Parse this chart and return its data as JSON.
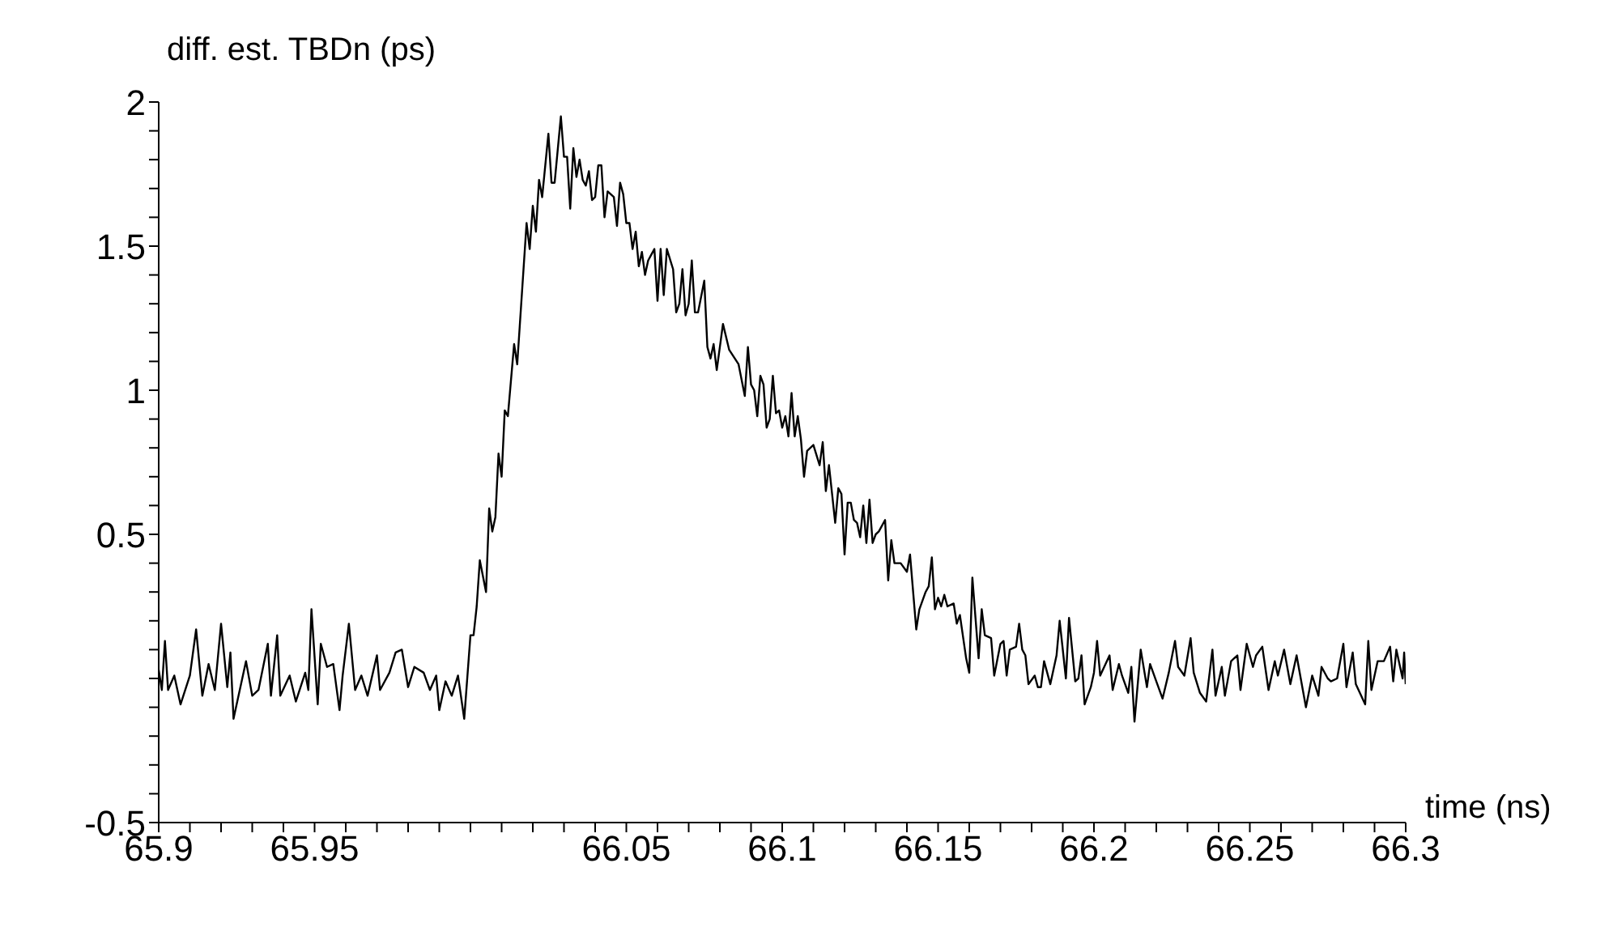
{
  "chart_data": {
    "type": "line",
    "xlabel": "time (ns)",
    "ylabel": "diff. est. TBDn (ps)",
    "xlim": [
      65.9,
      66.3
    ],
    "ylim": [
      -0.5,
      2
    ],
    "xticks": [
      65.9,
      {
        "value": 65.91,
        "label": null
      },
      {
        "value": 65.92,
        "label": null
      },
      {
        "value": 65.93,
        "label": null
      },
      {
        "value": 65.94,
        "label": null
      },
      65.95,
      {
        "value": 65.96,
        "label": null
      },
      {
        "value": 65.97,
        "label": null
      },
      {
        "value": 65.98,
        "label": null
      },
      {
        "value": 65.99,
        "label": null
      },
      {
        "value": 66,
        "label": null
      },
      {
        "value": 66.01,
        "label": null
      },
      {
        "value": 66.02,
        "label": null
      },
      {
        "value": 66.03,
        "label": null
      },
      {
        "value": 66.04,
        "label": null
      },
      66.05,
      {
        "value": 66.06,
        "label": null
      },
      {
        "value": 66.07,
        "label": null
      },
      {
        "value": 66.08,
        "label": null
      },
      {
        "value": 66.09,
        "label": null
      },
      66.1,
      {
        "value": 66.11,
        "label": null
      },
      {
        "value": 66.12,
        "label": null
      },
      {
        "value": 66.13,
        "label": null
      },
      {
        "value": 66.14,
        "label": null
      },
      66.15,
      {
        "value": 66.16,
        "label": null
      },
      {
        "value": 66.17,
        "label": null
      },
      {
        "value": 66.18,
        "label": null
      },
      {
        "value": 66.19,
        "label": null
      },
      66.2,
      {
        "value": 66.21,
        "label": null
      },
      {
        "value": 66.22,
        "label": null
      },
      {
        "value": 66.23,
        "label": null
      },
      {
        "value": 66.24,
        "label": null
      },
      66.25,
      {
        "value": 66.26,
        "label": null
      },
      {
        "value": 66.27,
        "label": null
      },
      {
        "value": 66.28,
        "label": null
      },
      {
        "value": 66.29,
        "label": null
      },
      66.3
    ],
    "yticks": [
      -0.5,
      {
        "value": -0.4,
        "label": null
      },
      {
        "value": -0.3,
        "label": null
      },
      {
        "value": -0.2,
        "label": null
      },
      {
        "value": -0.1,
        "label": null
      },
      {
        "value": 0,
        "label": null
      },
      {
        "value": 0.1,
        "label": null
      },
      {
        "value": 0.2,
        "label": null
      },
      {
        "value": 0.3,
        "label": null
      },
      {
        "value": 0.4,
        "label": null
      },
      0.5,
      {
        "value": 0.6,
        "label": null
      },
      {
        "value": 0.7,
        "label": null
      },
      {
        "value": 0.8,
        "label": null
      },
      {
        "value": 0.9,
        "label": null
      },
      1,
      {
        "value": 1.1,
        "label": null
      },
      {
        "value": 1.2,
        "label": null
      },
      {
        "value": 1.3,
        "label": null
      },
      {
        "value": 1.4,
        "label": null
      },
      1.5,
      {
        "value": 1.6,
        "label": null
      },
      {
        "value": 1.7,
        "label": null
      },
      {
        "value": 1.8,
        "label": null
      },
      {
        "value": 1.9,
        "label": null
      },
      2
    ],
    "grid": false,
    "marker": "none",
    "line_style": "solid",
    "series": [
      {
        "color": "#000000",
        "x": [
          65.9,
          65.901,
          65.902,
          65.903,
          65.905,
          65.907,
          65.91,
          65.912,
          65.914,
          65.916,
          65.918,
          65.92,
          65.922,
          65.923,
          65.924,
          65.928,
          65.93,
          65.932,
          65.935,
          65.936,
          65.938,
          65.939,
          65.942,
          65.944,
          65.947,
          65.948,
          65.949,
          65.951,
          65.952,
          65.954,
          65.956,
          65.958,
          65.959,
          65.961,
          65.963,
          65.965,
          65.967,
          65.97,
          65.971,
          65.974,
          65.976,
          65.978,
          65.98,
          65.982,
          65.985,
          65.987,
          65.989,
          65.99,
          65.992,
          65.994,
          65.996,
          65.998,
          66.0,
          66.001,
          66.002,
          66.003,
          66.005,
          66.006,
          66.007,
          66.008,
          66.009,
          66.01,
          66.011,
          66.012,
          66.014,
          66.015,
          66.018,
          66.019,
          66.02,
          66.021,
          66.022,
          66.023,
          66.025,
          66.026,
          66.027,
          66.029,
          66.03,
          66.031,
          66.032,
          66.033,
          66.034,
          66.035,
          66.036,
          66.037,
          66.038,
          66.039,
          66.04,
          66.041,
          66.042,
          66.043,
          66.044,
          66.046,
          66.047,
          66.048,
          66.049,
          66.05,
          66.051,
          66.052,
          66.053,
          66.054,
          66.055,
          66.056,
          66.057,
          66.058,
          66.059,
          66.06,
          66.061,
          66.062,
          66.063,
          66.065,
          66.066,
          66.067,
          66.068,
          66.069,
          66.07,
          66.071,
          66.072,
          66.073,
          66.075,
          66.076,
          66.077,
          66.078,
          66.079,
          66.081,
          66.083,
          66.086,
          66.088,
          66.089,
          66.09,
          66.091,
          66.092,
          66.093,
          66.094,
          66.095,
          66.096,
          66.097,
          66.098,
          66.099,
          66.1,
          66.101,
          66.102,
          66.103,
          66.104,
          66.105,
          66.106,
          66.107,
          66.108,
          66.11,
          66.112,
          66.113,
          66.114,
          66.115,
          66.116,
          66.117,
          66.118,
          66.119,
          66.12,
          66.121,
          66.122,
          66.123,
          66.124,
          66.125,
          66.126,
          66.127,
          66.128,
          66.129,
          66.13,
          66.131,
          66.133,
          66.134,
          66.135,
          66.136,
          66.138,
          66.14,
          66.141,
          66.143,
          66.144,
          66.146,
          66.147,
          66.148,
          66.149,
          66.15,
          66.151,
          66.152,
          66.153,
          66.155,
          66.156,
          66.157,
          66.159,
          66.16,
          66.161,
          66.163,
          66.164,
          66.165,
          66.167,
          66.168,
          66.17,
          66.171,
          66.172,
          66.173,
          66.175,
          66.176,
          66.177,
          66.178,
          66.179,
          66.181,
          66.182,
          66.183,
          66.184,
          66.186,
          66.188,
          66.189,
          66.191,
          66.192,
          66.194,
          66.195,
          66.196,
          66.197,
          66.199,
          66.2,
          66.201,
          66.202,
          66.205,
          66.206,
          66.208,
          66.209,
          66.211,
          66.212,
          66.213,
          66.215,
          66.217,
          66.218,
          66.22,
          66.222,
          66.224,
          66.226,
          66.227,
          66.229,
          66.231,
          66.232,
          66.234,
          66.236,
          66.238,
          66.239,
          66.241,
          66.242,
          66.244,
          66.246,
          66.247,
          66.249,
          66.251,
          66.252,
          66.254,
          66.256,
          66.258,
          66.259,
          66.261,
          66.263,
          66.265,
          66.267,
          66.268,
          66.27,
          66.272,
          66.273,
          66.275,
          66.276,
          66.278,
          66.28,
          66.281,
          66.283,
          66.284,
          66.287,
          66.288,
          66.289,
          66.291,
          66.293,
          66.295,
          66.296,
          66.297,
          66.299,
          66.2995,
          66.3
        ],
        "values": [
          0.03,
          -0.04,
          0.13,
          -0.04,
          0.01,
          -0.09,
          0.01,
          0.17,
          -0.06,
          0.05,
          -0.04,
          0.19,
          -0.03,
          0.09,
          -0.14,
          0.06,
          -0.06,
          -0.04,
          0.12,
          -0.06,
          0.15,
          -0.06,
          0.01,
          -0.08,
          0.02,
          -0.04,
          0.24,
          -0.09,
          0.12,
          0.04,
          0.05,
          -0.11,
          0.01,
          0.19,
          -0.04,
          0.01,
          -0.06,
          0.08,
          -0.04,
          0.02,
          0.09,
          0.1,
          -0.03,
          0.04,
          0.02,
          -0.04,
          0.01,
          -0.11,
          -0.01,
          -0.06,
          0.01,
          -0.14,
          0.15,
          0.15,
          0.25,
          0.41,
          0.3,
          0.59,
          0.51,
          0.56,
          0.78,
          0.7,
          0.93,
          0.91,
          1.16,
          1.09,
          1.58,
          1.49,
          1.64,
          1.55,
          1.73,
          1.67,
          1.89,
          1.72,
          1.72,
          1.95,
          1.81,
          1.81,
          1.63,
          1.84,
          1.74,
          1.8,
          1.73,
          1.71,
          1.76,
          1.66,
          1.67,
          1.78,
          1.78,
          1.6,
          1.69,
          1.67,
          1.57,
          1.72,
          1.68,
          1.58,
          1.58,
          1.49,
          1.55,
          1.43,
          1.48,
          1.4,
          1.45,
          1.47,
          1.49,
          1.31,
          1.49,
          1.33,
          1.49,
          1.42,
          1.27,
          1.3,
          1.42,
          1.26,
          1.3,
          1.45,
          1.27,
          1.27,
          1.38,
          1.15,
          1.11,
          1.16,
          1.07,
          1.23,
          1.14,
          1.09,
          0.98,
          1.15,
          1.02,
          1.0,
          0.91,
          1.05,
          1.02,
          0.87,
          0.9,
          1.05,
          0.92,
          0.93,
          0.87,
          0.91,
          0.84,
          0.99,
          0.84,
          0.91,
          0.83,
          0.7,
          0.79,
          0.81,
          0.74,
          0.82,
          0.65,
          0.74,
          0.64,
          0.54,
          0.66,
          0.64,
          0.43,
          0.61,
          0.61,
          0.55,
          0.54,
          0.49,
          0.6,
          0.47,
          0.62,
          0.47,
          0.5,
          0.51,
          0.55,
          0.34,
          0.48,
          0.4,
          0.4,
          0.37,
          0.43,
          0.17,
          0.24,
          0.3,
          0.32,
          0.42,
          0.24,
          0.28,
          0.25,
          0.29,
          0.25,
          0.26,
          0.19,
          0.22,
          0.07,
          0.02,
          0.35,
          0.07,
          0.24,
          0.15,
          0.14,
          0.01,
          0.12,
          0.13,
          0.01,
          0.1,
          0.11,
          0.19,
          0.1,
          0.08,
          -0.02,
          0.01,
          -0.03,
          -0.03,
          0.06,
          -0.02,
          0.08,
          0.2,
          0.0,
          0.21,
          -0.01,
          0.0,
          0.08,
          -0.09,
          -0.03,
          0.02,
          0.13,
          0.01,
          0.08,
          -0.04,
          0.05,
          0.01,
          -0.05,
          0.04,
          -0.15,
          0.1,
          -0.03,
          0.05,
          -0.01,
          -0.07,
          0.02,
          0.13,
          0.04,
          0.01,
          0.14,
          0.02,
          -0.05,
          -0.08,
          0.1,
          -0.06,
          0.04,
          -0.06,
          0.06,
          0.08,
          -0.04,
          0.12,
          0.04,
          0.08,
          0.11,
          -0.04,
          0.06,
          0.01,
          0.1,
          -0.02,
          0.08,
          -0.04,
          -0.1,
          0.01,
          -0.06,
          0.04,
          0.0,
          -0.01,
          0.0,
          0.12,
          -0.03,
          0.09,
          -0.02,
          -0.09,
          0.13,
          -0.04,
          0.06,
          0.06,
          0.11,
          -0.01,
          0.1,
          0.0,
          0.09,
          -0.02
        ]
      }
    ]
  }
}
